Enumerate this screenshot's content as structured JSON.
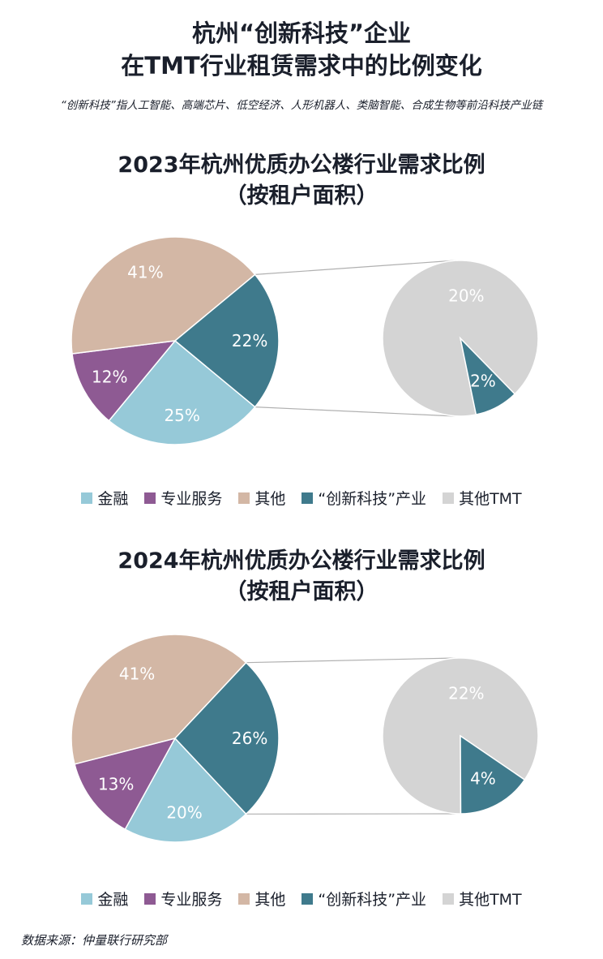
{
  "header": {
    "title_line1": "杭州“创新科技”企业",
    "title_line2": "在TMT行业租赁需求中的比例变化",
    "subtitle": "“创新科技”指人工智能、高端芯片、低空经济、人形机器人、类脑智能、合成生物等前沿科技产业链"
  },
  "source": "数据来源：仲量联行研究部",
  "colors": {
    "finance": "#96c9d8",
    "professional": "#8e5a93",
    "other": "#d3b7a5",
    "innovation": "#3f7a8c",
    "other_tmt": "#d4d4d4",
    "connector": "#b0b0b0"
  },
  "chart_data": [
    {
      "type": "pie",
      "title_line1": "2023年杭州优质办公楼行业需求比例",
      "title_line2": "（按租户面积）",
      "series": [
        {
          "name": "金融",
          "value": 25,
          "label": "25%",
          "color": "#96c9d8"
        },
        {
          "name": "专业服务",
          "value": 12,
          "label": "12%",
          "color": "#8e5a93"
        },
        {
          "name": "其他",
          "value": 41,
          "label": "41%",
          "color": "#d3b7a5"
        },
        {
          "name": "TMT",
          "value": 22,
          "label": "22%",
          "color": "#3f7a8c"
        }
      ],
      "breakdown": [
        {
          "name": "其他TMT",
          "value": 20,
          "label": "20%",
          "color": "#d4d4d4"
        },
        {
          "name": "“创新科技”产业",
          "value": 2,
          "label": "2%",
          "color": "#3f7a8c"
        }
      ],
      "legend": [
        "金融",
        "专业服务",
        "其他",
        "“创新科技”产业",
        "其他TMT"
      ]
    },
    {
      "type": "pie",
      "title_line1": "2024年杭州优质办公楼行业需求比例",
      "title_line2": "（按租户面积）",
      "series": [
        {
          "name": "金融",
          "value": 20,
          "label": "20%",
          "color": "#96c9d8"
        },
        {
          "name": "专业服务",
          "value": 13,
          "label": "13%",
          "color": "#8e5a93"
        },
        {
          "name": "其他",
          "value": 41,
          "label": "41%",
          "color": "#d3b7a5"
        },
        {
          "name": "TMT",
          "value": 26,
          "label": "26%",
          "color": "#3f7a8c"
        }
      ],
      "breakdown": [
        {
          "name": "其他TMT",
          "value": 22,
          "label": "22%",
          "color": "#d4d4d4"
        },
        {
          "name": "“创新科技”产业",
          "value": 4,
          "label": "4%",
          "color": "#3f7a8c"
        }
      ],
      "legend": [
        "金融",
        "专业服务",
        "其他",
        "“创新科技”产业",
        "其他TMT"
      ]
    }
  ]
}
